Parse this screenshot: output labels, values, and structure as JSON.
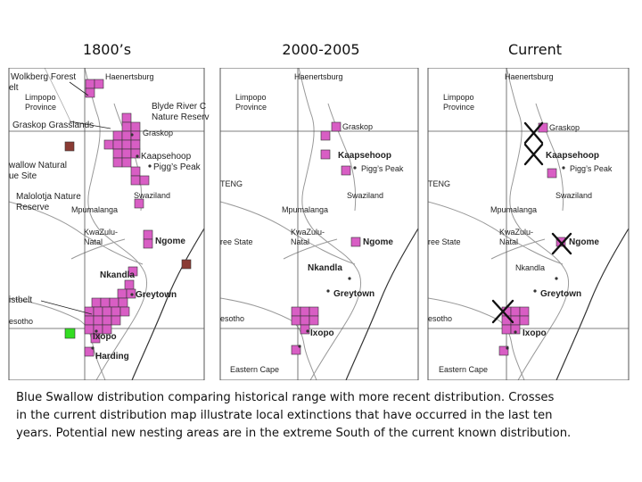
{
  "panels": [
    {
      "title": "1800’s",
      "labels": {
        "wolkberg": "Wolkberg Forest",
        "elt": "elt",
        "haenertsburg": "Haenertsburg",
        "limpopo1": "Limpopo",
        "limpopo2": "Province",
        "blyde1": "Blyde River C",
        "blyde2": "Nature Reserv",
        "graskop_grass": "Graskop Grasslands",
        "graskop": "Graskop",
        "kaapsehoop": "Kaapsehoop",
        "piggs": "Pigg’s Peak",
        "swallow1": "wallow Natural",
        "swallow2": "ue Site",
        "swaziland": "Swaziland",
        "malolotja1": "Malolotja Nature",
        "malolotja2": "Reserve",
        "mpumalanga": "Mpumalanga",
        "kzn1": "KwaZulu-",
        "kzn2": "Natal",
        "ngome": "Ngome",
        "nkandla": "Nkandla",
        "greytown": "Greytown",
        "mistbelt": "istbelt",
        "esotho": "esotho",
        "ixopo": "Ixopo",
        "harding": "Harding"
      }
    },
    {
      "title": "2000-2005",
      "labels": {
        "haenertsburg": "Haenertsburg",
        "limpopo1": "Limpopo",
        "limpopo2": "Province",
        "graskop": "Graskop",
        "kaapsehoop": "Kaapsehoop",
        "piggs": "Pigg’s Peak",
        "teng": "TENG",
        "swaziland": "Swaziland",
        "mpumalanga": "Mpumalanga",
        "freestate": "ree State",
        "kzn1": "KwaZulu-",
        "kzn2": "Natal",
        "ngome": "Ngome",
        "nkandla": "Nkandla",
        "greytown": "Greytown",
        "esotho": "esotho",
        "ixopo": "Ixopo",
        "easterncape": "Eastern Cape"
      }
    },
    {
      "title": "Current",
      "labels": {
        "haenertsburg": "Haenertsburg",
        "limpopo1": "Limpopo",
        "limpopo2": "Province",
        "graskop": "Graskop",
        "kaapsehoop": "Kaapsehoop",
        "piggs": "Pigg’s Peak",
        "teng": "TENG",
        "swaziland": "Swaziland",
        "mpumalanga": "Mpumalanga",
        "freestate": "ree State",
        "kzn1": "KwaZulu-",
        "kzn2": "Natal",
        "ngome": "Ngome",
        "nkandla": "Nkandla",
        "greytown": "Greytown",
        "esotho": "esotho",
        "ixopo": "Ixopo",
        "easterncape": "Eastern Cape"
      }
    }
  ],
  "caption": [
    "Blue Swallow distribution comparing historical range with more recent distribution. Crosses",
    "in the  current distribution map illustrate local extinctions that have occurred in the last ten",
    "years. Potential new nesting areas are in the extreme South of the current known distribution."
  ],
  "colors": {
    "occupied": "#d85ec4",
    "brown_record": "#8a3b34",
    "green_record": "#33dd22",
    "frame": "#555555",
    "road": "#999999"
  }
}
